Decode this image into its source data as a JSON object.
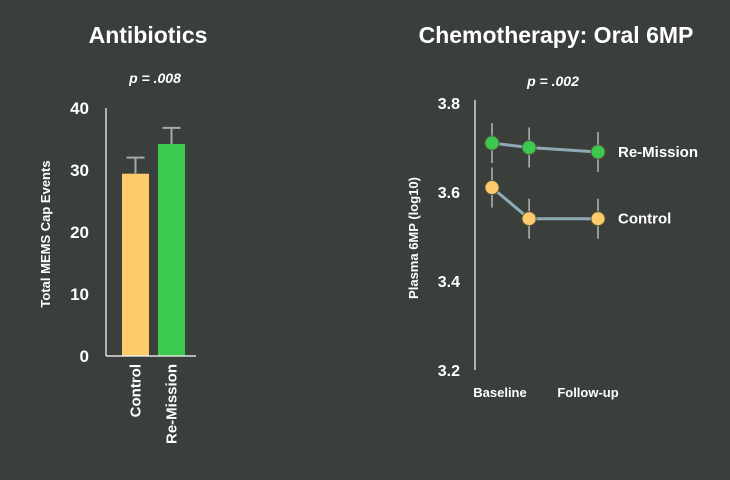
{
  "chart_data": [
    {
      "type": "bar",
      "title": "Antibiotics",
      "p_value": "p = .008",
      "ylabel": "Total MEMS Cap Events",
      "xlabel": "",
      "ylim": [
        0,
        40
      ],
      "yticks": [
        "0",
        "10",
        "20",
        "30",
        "40"
      ],
      "categories": [
        "Control",
        "Re-Mission"
      ],
      "values": [
        29.4,
        34.2
      ],
      "errors": [
        2.6,
        2.6
      ],
      "colors": [
        "#fdcb6b",
        "#3cc94f"
      ]
    },
    {
      "type": "line",
      "title": "Chemotherapy: Oral 6MP",
      "p_value": "p = .002",
      "ylabel": "Plasma 6MP (log10)",
      "xlabel": "",
      "ylim": [
        3.2,
        3.8
      ],
      "yticks": [
        "3.2",
        "3.4",
        "3.6",
        "3.8"
      ],
      "x_tick_labels": [
        "Baseline",
        "Follow-up"
      ],
      "series": [
        {
          "name": "Re-Mission",
          "x": [
            0,
            0.35,
            1.0
          ],
          "values": [
            3.71,
            3.7,
            3.69
          ],
          "errors": [
            0.045,
            0.045,
            0.045
          ],
          "color": "#3cc94f"
        },
        {
          "name": "Control",
          "x": [
            0,
            0.35,
            1.0
          ],
          "values": [
            3.61,
            3.54,
            3.54
          ],
          "errors": [
            0.045,
            0.045,
            0.045
          ],
          "color": "#fdcb6b"
        }
      ],
      "line_color": "#8fa9b5"
    }
  ]
}
